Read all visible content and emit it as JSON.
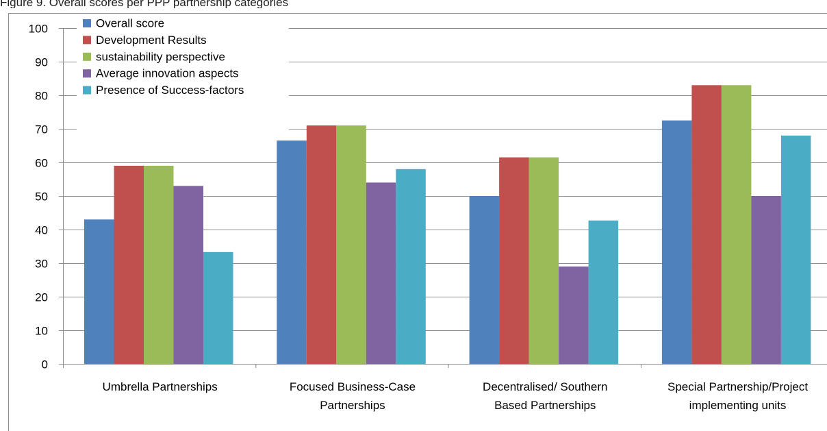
{
  "caption": "Figure 9. Overall scores per PPP partnership categories",
  "chart_data": {
    "type": "bar",
    "title": "",
    "xlabel": "",
    "ylabel": "",
    "ylim": [
      0,
      100
    ],
    "yticks": [
      0,
      10,
      20,
      30,
      40,
      50,
      60,
      70,
      80,
      90,
      100
    ],
    "grid": true,
    "legend_position": "top-left",
    "categories": [
      [
        "Umbrella Partnerships"
      ],
      [
        "Focused Business-Case",
        "Partnerships"
      ],
      [
        "Decentralised/ Southern",
        "Based Partnerships"
      ],
      [
        "Special Partnership/Project",
        "implementing units"
      ]
    ],
    "series": [
      {
        "name": "Overall score",
        "color": "#4f81bd",
        "values": [
          43,
          66.5,
          50,
          72.5
        ]
      },
      {
        "name": "Development Results",
        "color": "#c0504d",
        "values": [
          59,
          71,
          61.5,
          83
        ]
      },
      {
        "name": "sustainability perspective",
        "color": "#9bbb59",
        "values": [
          59,
          71,
          61.5,
          83
        ]
      },
      {
        "name": "Average innovation aspects",
        "color": "#8064a2",
        "values": [
          53,
          54,
          29,
          50
        ]
      },
      {
        "name": "Presence of Success-factors",
        "color": "#4bacc6",
        "values": [
          33.3,
          58,
          42.7,
          68
        ]
      }
    ]
  }
}
